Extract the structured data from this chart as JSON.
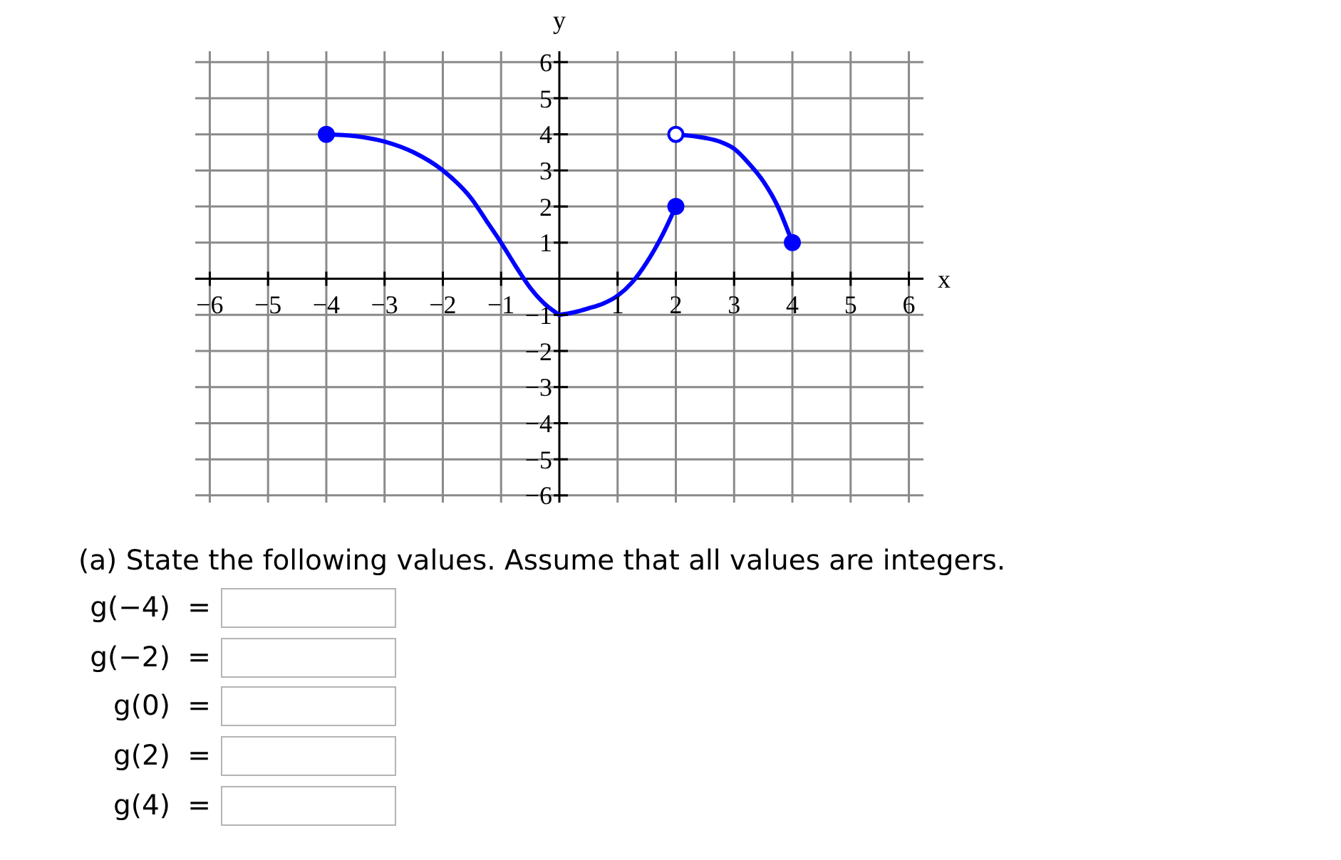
{
  "chart_data": {
    "type": "line",
    "xlabel": "x",
    "ylabel": "y",
    "xlim": [
      -6.25,
      6.25
    ],
    "ylim": [
      -6.2,
      6.3
    ],
    "xticks": [
      {
        "value": -6,
        "label": "−6"
      },
      {
        "value": -5,
        "label": "−5"
      },
      {
        "value": -4,
        "label": "−4"
      },
      {
        "value": -3,
        "label": "−3"
      },
      {
        "value": -2,
        "label": "−2"
      },
      {
        "value": -1,
        "label": "−1"
      },
      1,
      2,
      3,
      4,
      5,
      6
    ],
    "yticks": [
      {
        "value": -6,
        "label": "−6"
      },
      {
        "value": -5,
        "label": "−5"
      },
      {
        "value": -4,
        "label": "−4"
      },
      {
        "value": -3,
        "label": "−3"
      },
      {
        "value": -2,
        "label": "−2"
      },
      {
        "value": -1,
        "label": "−1"
      },
      1,
      2,
      3,
      4,
      5,
      6
    ],
    "grid": true,
    "series": [
      {
        "color": "#0000ff",
        "x": [
          -4,
          -3.5,
          -3,
          -2.5,
          -2,
          -1.5,
          -1.25,
          -1,
          -0.75,
          -0.5,
          -0.25,
          0
        ],
        "values": [
          4,
          3.95,
          3.8,
          3.5,
          3.0,
          2.2,
          1.6,
          1.0,
          0.35,
          -0.25,
          -0.7,
          -1
        ]
      },
      {
        "color": "#0000ff",
        "x": [
          0,
          0.25,
          0.5,
          0.75,
          1,
          1.25,
          1.5,
          1.75,
          2
        ],
        "values": [
          -1,
          -0.93,
          -0.82,
          -0.69,
          -0.47,
          -0.1,
          0.45,
          1.15,
          2
        ]
      },
      {
        "color": "#0000ff",
        "x": [
          2,
          2.5,
          2.75,
          3,
          3.25,
          3.5,
          3.75,
          4
        ],
        "values": [
          4,
          3.9,
          3.8,
          3.6,
          3.2,
          2.7,
          2.0,
          1
        ]
      },
      {
        "type": "scatter",
        "color": "#0000ff",
        "marker": "circle",
        "x": [
          -4,
          2,
          4
        ],
        "values": [
          4,
          2,
          1
        ]
      },
      {
        "type": "scatter",
        "color": "#ffffff",
        "marker": "circle",
        "x": [
          2
        ],
        "values": [
          4
        ]
      }
    ],
    "annotations": [
      "(a) State the following values. Assume that all values are integers.",
      "g(−4) =",
      "g(−2) =",
      "g(0) =",
      "g(2) =",
      "g(4) ="
    ]
  }
}
